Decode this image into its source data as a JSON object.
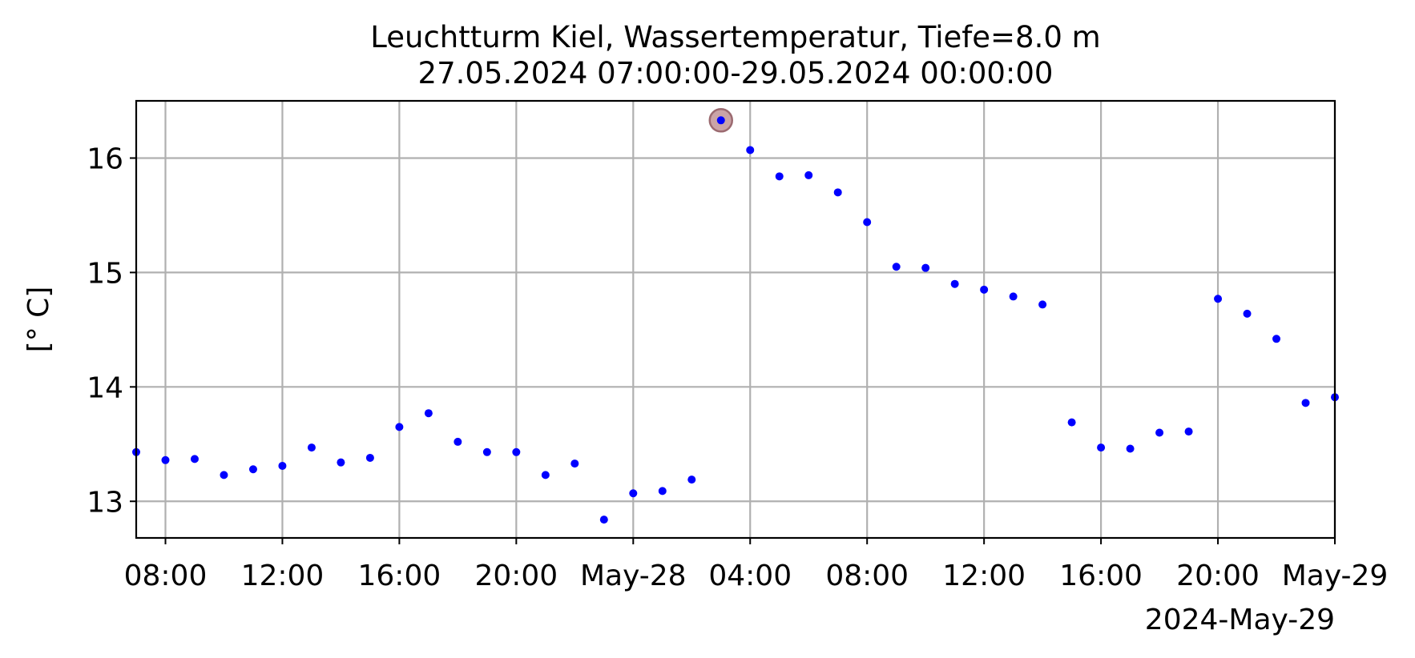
{
  "chart_data": {
    "type": "scatter",
    "title": "Leuchtturm Kiel, Wassertemperatur, Tiefe=8.0 m",
    "subtitle": "27.05.2024 07:00:00-29.05.2024 00:00:00",
    "xlabel": "",
    "ylabel": "[° C]",
    "x_offset_label": "2024-May-29",
    "xlim": [
      "2024-05-27T07:00",
      "2024-05-29T00:00"
    ],
    "ylim": [
      12.68,
      16.5
    ],
    "grid": true,
    "colors": {
      "points": "#0000ff",
      "highlight": "#b8858a",
      "grid": "#b0b0b0"
    },
    "x_ticks": [
      {
        "t": "2024-05-27T08:00",
        "label": "08:00"
      },
      {
        "t": "2024-05-27T12:00",
        "label": "12:00"
      },
      {
        "t": "2024-05-27T16:00",
        "label": "16:00"
      },
      {
        "t": "2024-05-27T20:00",
        "label": "20:00"
      },
      {
        "t": "2024-05-28T00:00",
        "label": "May-28"
      },
      {
        "t": "2024-05-28T04:00",
        "label": "04:00"
      },
      {
        "t": "2024-05-28T08:00",
        "label": "08:00"
      },
      {
        "t": "2024-05-28T12:00",
        "label": "12:00"
      },
      {
        "t": "2024-05-28T16:00",
        "label": "16:00"
      },
      {
        "t": "2024-05-28T20:00",
        "label": "20:00"
      },
      {
        "t": "2024-05-29T00:00",
        "label": "May-29"
      }
    ],
    "y_ticks": [
      13,
      14,
      15,
      16
    ],
    "highlight_point": {
      "x": "2024-05-28T03:00",
      "y": 16.33
    },
    "series": [
      {
        "x": [
          "2024-05-27T07:00",
          "2024-05-27T08:00",
          "2024-05-27T09:00",
          "2024-05-27T10:00",
          "2024-05-27T11:00",
          "2024-05-27T12:00",
          "2024-05-27T13:00",
          "2024-05-27T14:00",
          "2024-05-27T15:00",
          "2024-05-27T16:00",
          "2024-05-27T17:00",
          "2024-05-27T18:00",
          "2024-05-27T19:00",
          "2024-05-27T20:00",
          "2024-05-27T21:00",
          "2024-05-27T22:00",
          "2024-05-27T23:00",
          "2024-05-28T00:00",
          "2024-05-28T01:00",
          "2024-05-28T02:00",
          "2024-05-28T03:00",
          "2024-05-28T04:00",
          "2024-05-28T05:00",
          "2024-05-28T06:00",
          "2024-05-28T07:00",
          "2024-05-28T08:00",
          "2024-05-28T09:00",
          "2024-05-28T10:00",
          "2024-05-28T11:00",
          "2024-05-28T12:00",
          "2024-05-28T13:00",
          "2024-05-28T14:00",
          "2024-05-28T15:00",
          "2024-05-28T16:00",
          "2024-05-28T17:00",
          "2024-05-28T18:00",
          "2024-05-28T19:00",
          "2024-05-28T20:00",
          "2024-05-28T21:00",
          "2024-05-28T22:00",
          "2024-05-28T23:00",
          "2024-05-29T00:00"
        ],
        "y": [
          13.43,
          13.36,
          13.37,
          13.23,
          13.28,
          13.31,
          13.47,
          13.34,
          13.38,
          13.65,
          13.77,
          13.52,
          13.43,
          13.43,
          13.23,
          13.33,
          12.84,
          13.07,
          13.09,
          13.19,
          16.33,
          16.07,
          15.84,
          15.85,
          15.7,
          15.44,
          15.05,
          15.04,
          14.9,
          14.85,
          14.79,
          14.72,
          13.69,
          13.47,
          13.46,
          13.6,
          13.61,
          14.77,
          14.64,
          14.42,
          13.86,
          13.91
        ]
      }
    ]
  }
}
